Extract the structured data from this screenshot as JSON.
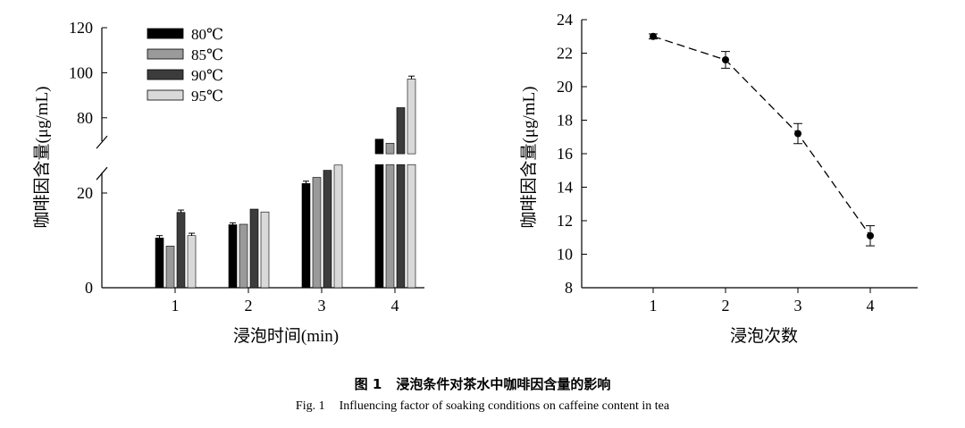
{
  "caption": {
    "cn_num": "图 1",
    "cn_text": "浸泡条件对茶水中咖啡因含量的影响",
    "en_num": "Fig. 1",
    "en_text": "Influencing factor of soaking conditions on caffeine content in tea"
  },
  "chart_data": [
    {
      "type": "bar",
      "title": "",
      "xlabel": "浸泡时间(min)",
      "ylabel": "咖啡因含量(μg/mL)",
      "categories": [
        "1",
        "2",
        "3",
        "4"
      ],
      "axis_break": {
        "lower_range": [
          0,
          26
        ],
        "upper_range": [
          64,
          120
        ]
      },
      "yticks_lower": [
        "0",
        "20"
      ],
      "yticks_upper": [
        "80",
        "100",
        "120"
      ],
      "legend_position": "top-left",
      "series": [
        {
          "name": "80℃",
          "values": [
            10.5,
            13.3,
            22.0,
            70.5
          ],
          "errors": [
            0.5,
            0.4,
            0.5,
            0
          ],
          "color": "#000000"
        },
        {
          "name": "85℃",
          "values": [
            8.8,
            13.4,
            23.3,
            68.7
          ],
          "errors": [
            0,
            0,
            0,
            0
          ],
          "color": "#9a9a9a"
        },
        {
          "name": "90℃",
          "values": [
            15.9,
            16.6,
            24.8,
            84.5
          ],
          "errors": [
            0.5,
            0,
            0,
            0
          ],
          "color": "#3c3c3c"
        },
        {
          "name": "95℃",
          "values": [
            11.0,
            16.0,
            25.9,
            97.2
          ],
          "errors": [
            0.5,
            0,
            0,
            1.3
          ],
          "color": "#d9d9d9"
        }
      ]
    },
    {
      "type": "line",
      "title": "",
      "xlabel": "浸泡次数",
      "ylabel": "咖啡因含量(μg/mL)",
      "x": [
        1,
        2,
        3,
        4
      ],
      "xticks": [
        "1",
        "2",
        "3",
        "4"
      ],
      "y": [
        23.0,
        21.6,
        17.2,
        11.1
      ],
      "errors": [
        0.15,
        0.5,
        0.6,
        0.6
      ],
      "ylim": [
        8,
        24
      ],
      "yticks": [
        "8",
        "10",
        "12",
        "14",
        "16",
        "18",
        "20",
        "22",
        "24"
      ],
      "line_style": "dashed",
      "marker": "filled-circle"
    }
  ]
}
